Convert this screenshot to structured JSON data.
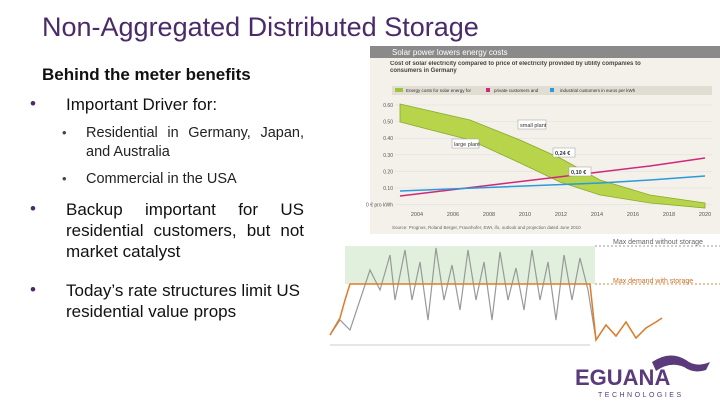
{
  "title": "Non-Aggregated Distributed Storage",
  "body": {
    "heading": "Behind the meter benefits",
    "bullets": [
      {
        "text": "Important Driver for:",
        "sub": [
          "Residential in Germany, Japan, and Australia",
          "Commercial in the USA"
        ]
      },
      {
        "text": "Backup important for US residential customers, but not market catalyst"
      },
      {
        "text": "Today’s rate structures limit US residential value props"
      }
    ]
  },
  "figure1": {
    "header": "Solar power lowers energy costs",
    "subtitle": "Cost of solar electricity compared to price of electricity provided by utility companies to consumers in Germany",
    "legend": [
      "Energy costs for solar energy for",
      "private customers and",
      "industrial customers in euros per kWh"
    ],
    "yticks": [
      "0.60",
      "0.50",
      "0.40",
      "0.30",
      "0.20",
      "0.10",
      "0 € pro kWh"
    ],
    "xticks": [
      "2004",
      "2006",
      "2008",
      "2010",
      "2012",
      "2014",
      "2016",
      "2018",
      "2020"
    ],
    "annotations": [
      "small plant",
      "large plant",
      "0,24 €",
      "0,10 €"
    ],
    "source": "Source: Prognos, Roland Berger, Fraunhofer, EWI, ifo, outlook and projection dated June 2010"
  },
  "figure2": {
    "labels": [
      "Max demand without storage",
      "Max demand with storage"
    ]
  },
  "logo": {
    "name": "EGUANA",
    "tagline": "TECHNOLOGIES"
  }
}
